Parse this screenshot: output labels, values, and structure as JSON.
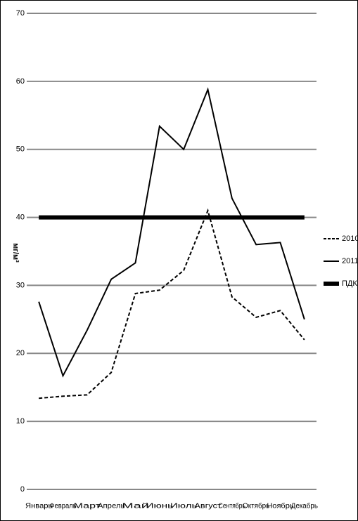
{
  "chart_data": {
    "type": "line",
    "y_label": "мг/м³",
    "categories": [
      "Январь",
      "Февраль",
      "Март",
      "Апрель",
      "Май",
      "Июнь",
      "Июль",
      "Август",
      "Сентябрь",
      "Октябрь",
      "Ноябрь",
      "Декабрь"
    ],
    "series": [
      {
        "name": "2010",
        "color": "#000000",
        "dashed": true,
        "width": 2,
        "values": [
          13.4,
          13.7,
          13.9,
          17.2,
          28.8,
          29.3,
          32.2,
          41.0,
          28.3,
          25.3,
          26.3,
          22.0
        ]
      },
      {
        "name": "2011",
        "color": "#000000",
        "dashed": false,
        "width": 2,
        "values": [
          27.6,
          16.7,
          23.4,
          30.9,
          33.3,
          53.4,
          50.0,
          58.8,
          42.8,
          36.0,
          36.3,
          25.0
        ]
      },
      {
        "name": "ПДК",
        "color": "#000000",
        "dashed": false,
        "width": 6,
        "values": [
          40,
          40,
          40,
          40,
          40,
          40,
          40,
          40,
          40,
          40,
          40,
          40
        ]
      }
    ],
    "ylim": [
      0,
      70
    ],
    "yticks": [
      0,
      10,
      20,
      30,
      40,
      50,
      60,
      70
    ],
    "grid": true,
    "legend": "right"
  }
}
